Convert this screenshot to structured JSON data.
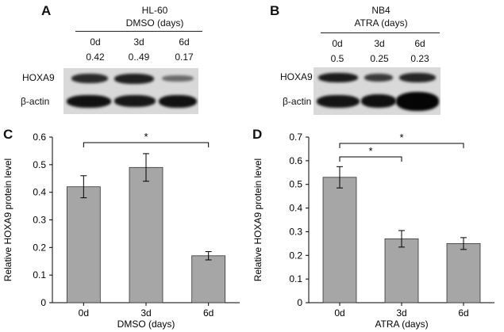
{
  "panel_a": {
    "letter": "A",
    "cell_line": "HL-60",
    "treatment": "DMSO (days)",
    "lanes": [
      "0d",
      "3d",
      "6d"
    ],
    "quant": [
      "0.42",
      "0..49",
      "0.17"
    ],
    "rows": [
      "HOXA9",
      "β-actin"
    ]
  },
  "panel_b": {
    "letter": "B",
    "cell_line": "NB4",
    "treatment": "ATRA (days)",
    "lanes": [
      "0d",
      "3d",
      "6d"
    ],
    "quant": [
      "0.5",
      "0.25",
      "0.23"
    ],
    "rows": [
      "HOXA9",
      "β-actin"
    ]
  },
  "colors": {
    "bar": "#a6a6a6",
    "blot_bg": "#d9d9d9",
    "band": "#1a1a1a"
  },
  "chart_data": [
    {
      "panel": "C",
      "type": "bar",
      "categories": [
        "0d",
        "3d",
        "6d"
      ],
      "values": [
        0.42,
        0.49,
        0.17
      ],
      "errors": [
        0.04,
        0.05,
        0.015
      ],
      "xlabel": "DMSO (days)",
      "ylabel": "Relative HOXA9 protein level",
      "ylim": [
        0,
        0.6
      ],
      "yticks": [
        "0",
        "0.1",
        "0.2",
        "0.3",
        "0.4",
        "0.5",
        "0.6"
      ],
      "significance": [
        {
          "from": 0,
          "to": 2,
          "label": "*"
        }
      ]
    },
    {
      "panel": "D",
      "type": "bar",
      "categories": [
        "0d",
        "3d",
        "6d"
      ],
      "values": [
        0.53,
        0.27,
        0.25
      ],
      "errors": [
        0.045,
        0.035,
        0.025
      ],
      "xlabel": "ATRA (days)",
      "ylabel": "Relative HOXA9 protein level",
      "ylim": [
        0,
        0.7
      ],
      "yticks": [
        "0",
        "0.1",
        "0.2",
        "0.3",
        "0.4",
        "0.5",
        "0.6",
        "0.7"
      ],
      "significance": [
        {
          "from": 0,
          "to": 1,
          "label": "*"
        },
        {
          "from": 0,
          "to": 2,
          "label": "*"
        }
      ]
    }
  ]
}
